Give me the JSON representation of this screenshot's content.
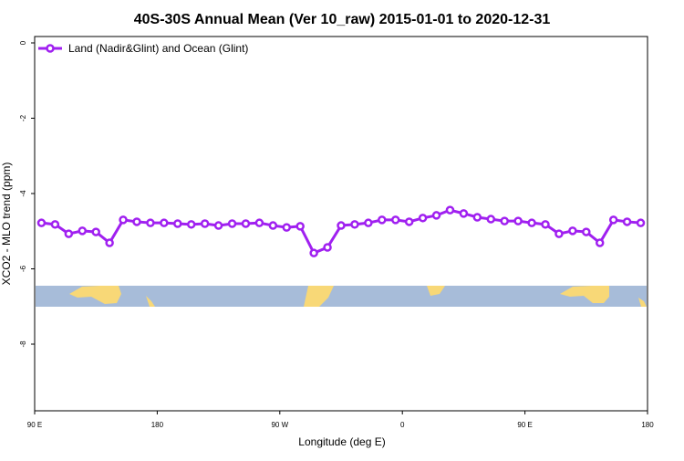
{
  "chart_data": {
    "type": "line",
    "title": "40S-30S Annual Mean (Ver 10_raw)   2015-01-01 to 2020-12-31",
    "xlabel": "Longitude (deg E)",
    "ylabel": "XCO2 - MLO trend (ppm)",
    "x": [
      95,
      105,
      115,
      125,
      135,
      145,
      155,
      165,
      175,
      185,
      195,
      205,
      215,
      225,
      235,
      245,
      255,
      265,
      275,
      285,
      295,
      305,
      315,
      325,
      335,
      345,
      355,
      365,
      375,
      385,
      395,
      405,
      415,
      425,
      435,
      445,
      455,
      465,
      475,
      485,
      495,
      505,
      515,
      525,
      535
    ],
    "series": [
      {
        "name": "Land (Nadir&Glint) and Ocean (Glint)",
        "color": "#a020f0",
        "values": [
          -4.78,
          -4.82,
          -5.07,
          -4.99,
          -5.02,
          -5.31,
          -4.7,
          -4.75,
          -4.78,
          -4.78,
          -4.8,
          -4.82,
          -4.8,
          -4.85,
          -4.8,
          -4.8,
          -4.78,
          -4.85,
          -4.9,
          -4.87,
          -5.58,
          -5.43,
          -4.85,
          -4.82,
          -4.78,
          -4.7,
          -4.7,
          -4.75,
          -4.65,
          -4.58,
          -4.44,
          -4.53,
          -4.63,
          -4.68,
          -4.73,
          -4.73,
          -4.78,
          -4.82,
          -5.07,
          -4.99,
          -5.02,
          -5.31,
          -4.7,
          -4.75,
          -4.78
        ]
      }
    ],
    "xlim": [
      90,
      540
    ],
    "xticks": [
      {
        "value": 90,
        "label": "90 E"
      },
      {
        "value": 180,
        "label": "180"
      },
      {
        "value": 270,
        "label": "90 W"
      },
      {
        "value": 360,
        "label": "0"
      },
      {
        "value": 450,
        "label": "90 E"
      },
      {
        "value": 540,
        "label": "180"
      }
    ],
    "ylim": [
      -9.77,
      0.17
    ],
    "yticks": [
      0,
      -2,
      -4,
      -6,
      -8
    ],
    "legend": "top-left"
  }
}
